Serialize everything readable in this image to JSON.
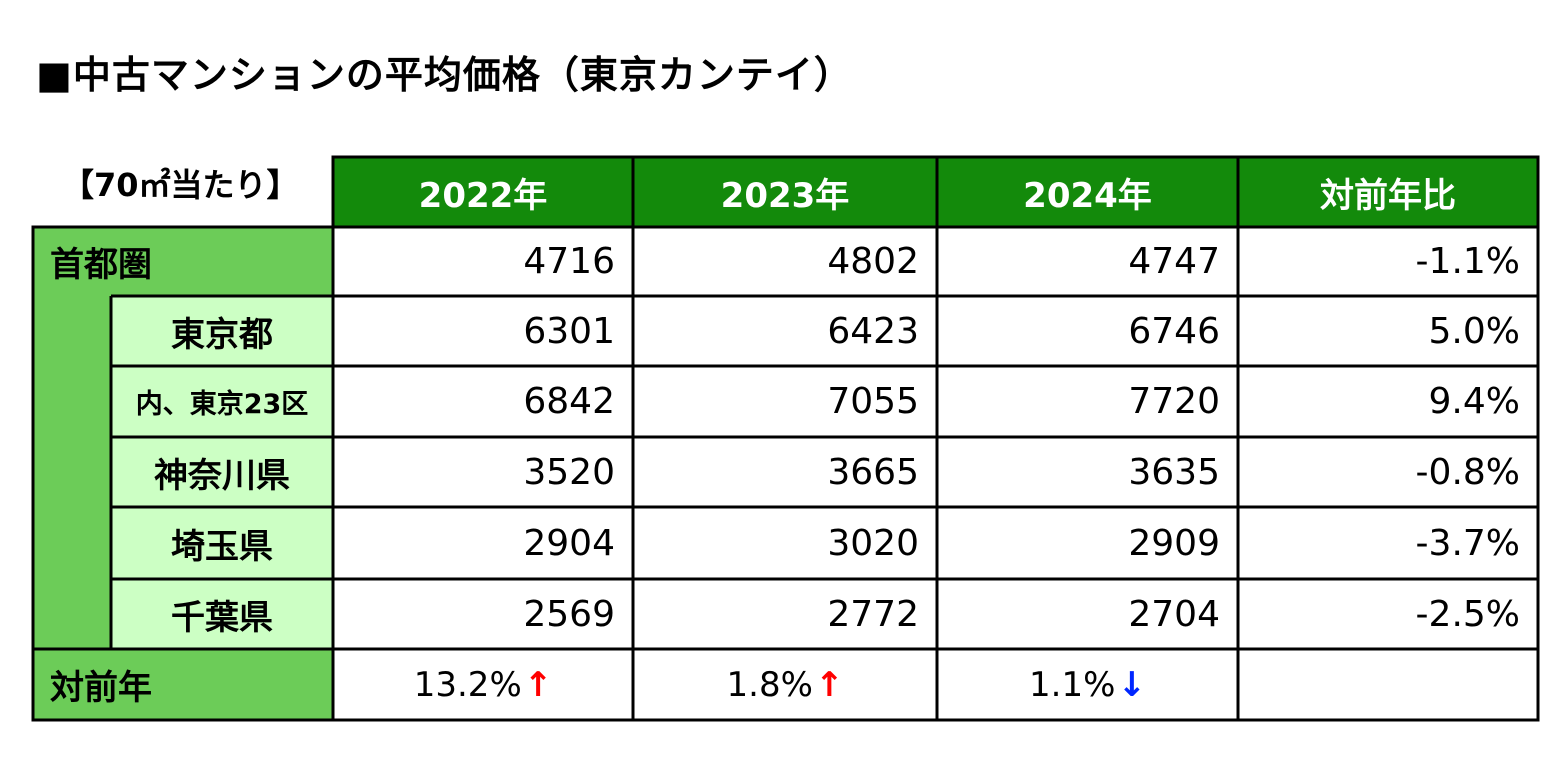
{
  "title": "■中古マンションの平均価格（東京カンテイ）",
  "unit_label": "【70㎡当たり】",
  "colors": {
    "header_bg": "#138a0b",
    "label_bg": "#6ccc58",
    "sub_bg": "#ccffc4",
    "up_arrow": "#ff0000",
    "down_arrow": "#0026ff"
  },
  "chart_data": {
    "type": "table",
    "title": "■中古マンションの平均価格（東京カンテイ）",
    "unit": "【70㎡当たり】",
    "columns": [
      "2022年",
      "2023年",
      "2024年",
      "対前年比"
    ],
    "rows": [
      {
        "label": "首都圏",
        "values": [
          "4716",
          "4802",
          "4747"
        ],
        "yoy": "-1.1%"
      },
      {
        "label": "東京都",
        "values": [
          "6301",
          "6423",
          "6746"
        ],
        "yoy": "5.0%"
      },
      {
        "label": "内、東京23区",
        "values": [
          "6842",
          "7055",
          "7720"
        ],
        "yoy": "9.4%"
      },
      {
        "label": "神奈川県",
        "values": [
          "3520",
          "3665",
          "3635"
        ],
        "yoy": "-0.8%"
      },
      {
        "label": "埼玉県",
        "values": [
          "2904",
          "3020",
          "2909"
        ],
        "yoy": "-3.7%"
      },
      {
        "label": "千葉県",
        "values": [
          "2569",
          "2772",
          "2704"
        ],
        "yoy": "-2.5%"
      }
    ],
    "footer": {
      "label": "対前年",
      "values": [
        {
          "text": "13.2%",
          "arrow": "↑",
          "direction": "up"
        },
        {
          "text": "1.8%",
          "arrow": "↑",
          "direction": "up"
        },
        {
          "text": "1.1%",
          "arrow": "↓",
          "direction": "down"
        }
      ]
    }
  }
}
